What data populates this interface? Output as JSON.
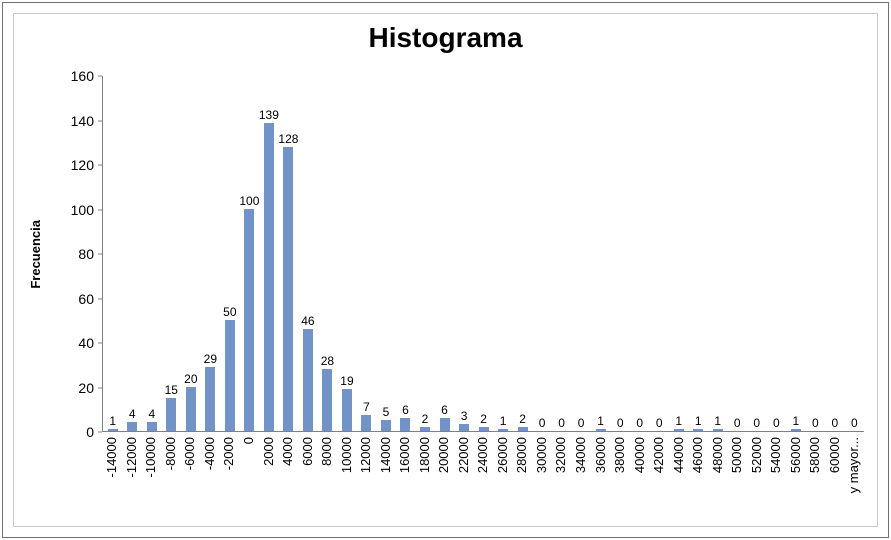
{
  "chart_data": {
    "type": "bar",
    "title": "Histograma",
    "ylabel": "Frecuencia",
    "xlabel": "",
    "ylim": [
      0,
      160
    ],
    "yticks": [
      0,
      20,
      40,
      60,
      80,
      100,
      120,
      140,
      160
    ],
    "grid": false,
    "legend": "none",
    "data_labels": true,
    "bar_color": "#7193C7",
    "axis_color": "#808080",
    "categories": [
      "-14000",
      "-12000",
      "-10000",
      "-8000",
      "-6000",
      "-4000",
      "-2000",
      "0",
      "2000",
      "4000",
      "6000",
      "8000",
      "10000",
      "12000",
      "14000",
      "16000",
      "18000",
      "20000",
      "22000",
      "24000",
      "26000",
      "28000",
      "30000",
      "32000",
      "34000",
      "36000",
      "38000",
      "40000",
      "42000",
      "44000",
      "46000",
      "48000",
      "50000",
      "52000",
      "54000",
      "56000",
      "58000",
      "60000",
      "y mayor..."
    ],
    "values": [
      1,
      4,
      4,
      15,
      20,
      29,
      50,
      100,
      139,
      128,
      46,
      28,
      19,
      7,
      5,
      6,
      2,
      6,
      3,
      2,
      1,
      2,
      0,
      0,
      0,
      1,
      0,
      0,
      0,
      1,
      1,
      1,
      0,
      0,
      0,
      1,
      0,
      0,
      0
    ]
  }
}
